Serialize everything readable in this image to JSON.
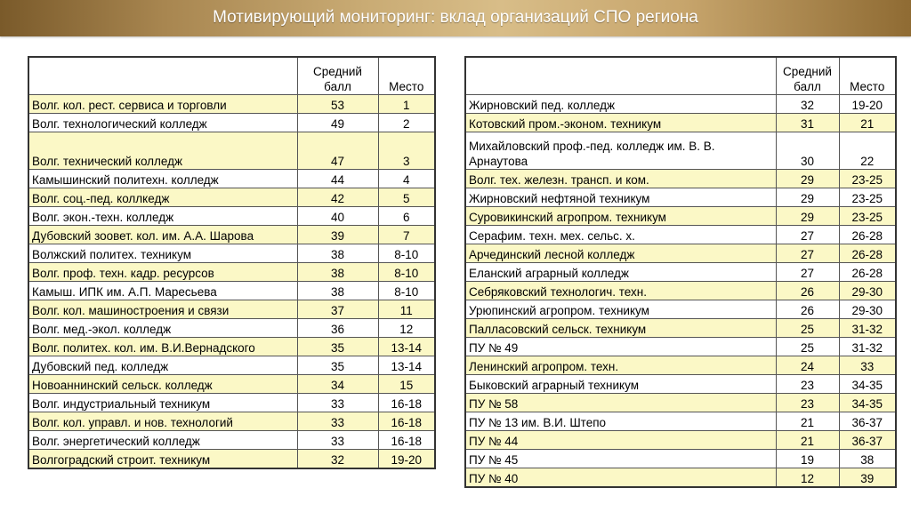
{
  "title": "Мотивирующий мониторинг: вклад организаций СПО региона",
  "columns": {
    "score": "Средний балл",
    "place": "Место"
  },
  "left_rows": [
    {
      "name": "Волг. кол. рест. сервиса и торговли",
      "score": "53",
      "place": "1",
      "hl": true
    },
    {
      "name": "Волг. технологический колледж",
      "score": "49",
      "place": "2",
      "hl": false
    },
    {
      "name": "Волг. технический колледж",
      "score": "47",
      "place": "3",
      "hl": true,
      "tall": true
    },
    {
      "name": "Камышинский политехн. колледж",
      "score": "44",
      "place": "4",
      "hl": false
    },
    {
      "name": "Волг. соц.-пед. коллкедж",
      "score": "42",
      "place": "5",
      "hl": true
    },
    {
      "name": "Волг. экон.-техн. колледж",
      "score": "40",
      "place": "6",
      "hl": false
    },
    {
      "name": "Дубовский зоовет. кол. им. А.А. Шарова",
      "score": "39",
      "place": "7",
      "hl": true
    },
    {
      "name": "Волжский политех. техникум",
      "score": "38",
      "place": "8-10",
      "hl": false
    },
    {
      "name": "Волг. проф. техн. кадр. ресурсов",
      "score": "38",
      "place": "8-10",
      "hl": true
    },
    {
      "name": "Камыш. ИПК им. А.П. Маресьева",
      "score": "38",
      "place": "8-10",
      "hl": false
    },
    {
      "name": "Волг. кол. машиностроения и связи",
      "score": "37",
      "place": "11",
      "hl": true
    },
    {
      "name": "Волг. мед.-экол. колледж",
      "score": "36",
      "place": "12",
      "hl": false
    },
    {
      "name": "Волг. политех. кол. им. В.И.Вернадского",
      "score": "35",
      "place": "13-14",
      "hl": true
    },
    {
      "name": "Дубовский пед. колледж",
      "score": "35",
      "place": "13-14",
      "hl": false
    },
    {
      "name": "Новоаннинский сельск. колледж",
      "score": "34",
      "place": "15",
      "hl": true
    },
    {
      "name": "Волг. индустриальный техникум",
      "score": "33",
      "place": "16-18",
      "hl": false
    },
    {
      "name": "Волг. кол. управл. и нов. технологий",
      "score": "33",
      "place": "16-18",
      "hl": true
    },
    {
      "name": "Волг. энергетический колледж",
      "score": "33",
      "place": "16-18",
      "hl": false
    },
    {
      "name": "Волгоградский строит. техникум",
      "score": "32",
      "place": "19-20",
      "hl": true
    }
  ],
  "right_rows": [
    {
      "name": "Жирновский пед. колледж",
      "score": "32",
      "place": "19-20",
      "hl": false
    },
    {
      "name": "Котовский пром.-эконом. техникум",
      "score": "31",
      "place": "21",
      "hl": true
    },
    {
      "name": "Михайловский проф.-пед. колледж им. В. В. Арнаутова",
      "score": "30",
      "place": "22",
      "hl": false,
      "tall": true
    },
    {
      "name": "Волг. тех. железн. трансп. и ком.",
      "score": "29",
      "place": "23-25",
      "hl": true
    },
    {
      "name": "Жирновский нефтяной техникум",
      "score": "29",
      "place": "23-25",
      "hl": false
    },
    {
      "name": "Суровикинский агропром. техникум",
      "score": "29",
      "place": "23-25",
      "hl": true
    },
    {
      "name": "Серафим. техн. мех. сельс. х.",
      "score": "27",
      "place": "26-28",
      "hl": false
    },
    {
      "name": "Арчединский лесной колледж",
      "score": "27",
      "place": "26-28",
      "hl": true
    },
    {
      "name": "Еланский аграрный колледж",
      "score": "27",
      "place": "26-28",
      "hl": false
    },
    {
      "name": "Себряковский технологич. техн.",
      "score": "26",
      "place": "29-30",
      "hl": true
    },
    {
      "name": "Урюпинский агропром. техникум",
      "score": "26",
      "place": "29-30",
      "hl": false
    },
    {
      "name": "Палласовский сельск. техникум",
      "score": "25",
      "place": "31-32",
      "hl": true
    },
    {
      "name": "ПУ № 49",
      "score": "25",
      "place": "31-32",
      "hl": false
    },
    {
      "name": "Ленинский агропром. техн.",
      "score": "24",
      "place": "33",
      "hl": true
    },
    {
      "name": "Быковский аграрный техникум",
      "score": "23",
      "place": "34-35",
      "hl": false
    },
    {
      "name": "ПУ № 58",
      "score": "23",
      "place": "34-35",
      "hl": true
    },
    {
      "name": "ПУ № 13 им. В.И. Штепо",
      "score": "21",
      "place": "36-37",
      "hl": false
    },
    {
      "name": "ПУ № 44",
      "score": "21",
      "place": "36-37",
      "hl": true
    },
    {
      "name": "ПУ № 45",
      "score": "19",
      "place": "38",
      "hl": false
    },
    {
      "name": "ПУ № 40",
      "score": "12",
      "place": "39",
      "hl": true
    }
  ]
}
